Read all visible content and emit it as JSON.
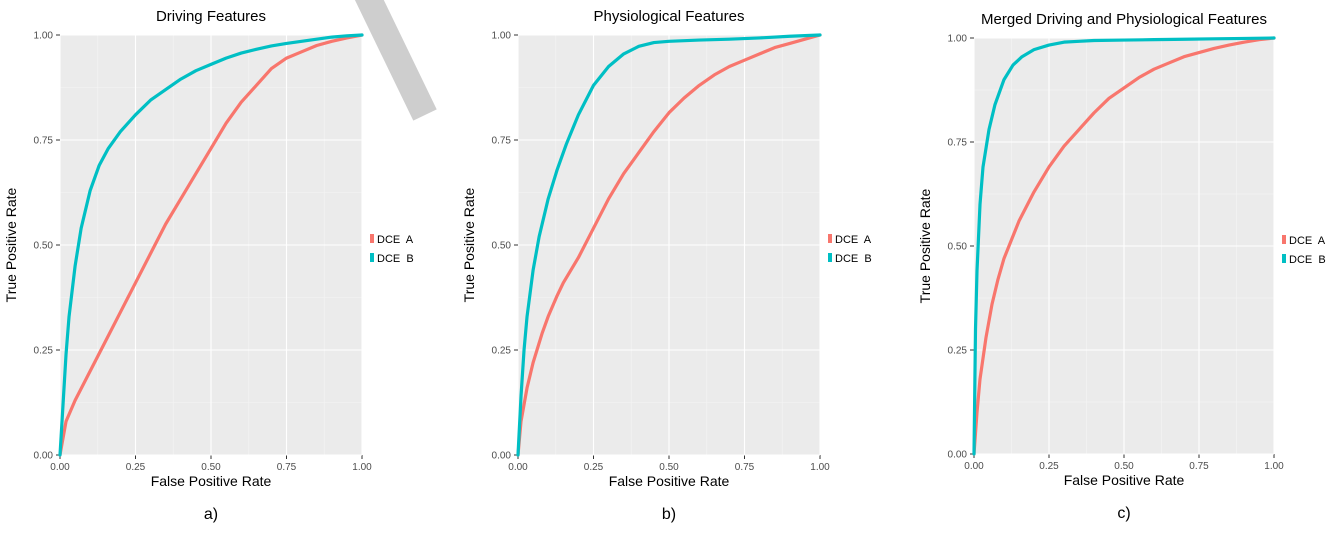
{
  "chart_data": [
    {
      "type": "line",
      "title": "Driving Features",
      "caption": "a)",
      "xlabel": "False Positive Rate",
      "ylabel": "True Positive Rate",
      "xlim": [
        0,
        1
      ],
      "ylim": [
        0,
        1
      ],
      "x_ticks": [
        "0.00",
        "0.25",
        "0.50",
        "0.75",
        "1.00"
      ],
      "y_ticks": [
        "0.00",
        "0.25",
        "0.50",
        "0.75",
        "1.00"
      ],
      "grid": true,
      "legend": "right",
      "series": [
        {
          "name": "DCE  A",
          "color": "#f8766d",
          "x": [
            0,
            0.02,
            0.05,
            0.1,
            0.15,
            0.2,
            0.25,
            0.3,
            0.35,
            0.4,
            0.45,
            0.5,
            0.55,
            0.6,
            0.65,
            0.7,
            0.75,
            0.8,
            0.85,
            0.9,
            0.95,
            1.0
          ],
          "y": [
            0,
            0.08,
            0.13,
            0.2,
            0.27,
            0.34,
            0.41,
            0.48,
            0.55,
            0.61,
            0.67,
            0.73,
            0.79,
            0.84,
            0.88,
            0.92,
            0.945,
            0.96,
            0.975,
            0.985,
            0.993,
            1.0
          ]
        },
        {
          "name": "DCE  B",
          "color": "#00bfc4",
          "x": [
            0,
            0.01,
            0.02,
            0.03,
            0.05,
            0.07,
            0.1,
            0.13,
            0.16,
            0.2,
            0.25,
            0.3,
            0.35,
            0.4,
            0.45,
            0.5,
            0.55,
            0.6,
            0.65,
            0.7,
            0.75,
            0.8,
            0.85,
            0.9,
            0.95,
            1.0
          ],
          "y": [
            0,
            0.12,
            0.24,
            0.33,
            0.45,
            0.54,
            0.63,
            0.69,
            0.73,
            0.77,
            0.81,
            0.845,
            0.87,
            0.895,
            0.915,
            0.93,
            0.945,
            0.957,
            0.966,
            0.974,
            0.98,
            0.985,
            0.99,
            0.995,
            0.998,
            1.0
          ]
        }
      ]
    },
    {
      "type": "line",
      "title": "Physiological Features",
      "caption": "b)",
      "xlabel": "False Positive Rate",
      "ylabel": "True Positive Rate",
      "xlim": [
        0,
        1
      ],
      "ylim": [
        0,
        1
      ],
      "x_ticks": [
        "0.00",
        "0.25",
        "0.50",
        "0.75",
        "1.00"
      ],
      "y_ticks": [
        "0.00",
        "0.25",
        "0.50",
        "0.75",
        "1.00"
      ],
      "grid": true,
      "legend": "right",
      "series": [
        {
          "name": "DCE  A",
          "color": "#f8766d",
          "x": [
            0,
            0.01,
            0.03,
            0.05,
            0.08,
            0.1,
            0.13,
            0.15,
            0.2,
            0.25,
            0.3,
            0.35,
            0.4,
            0.45,
            0.5,
            0.55,
            0.6,
            0.65,
            0.7,
            0.75,
            0.8,
            0.85,
            0.9,
            0.95,
            1.0
          ],
          "y": [
            0,
            0.08,
            0.16,
            0.22,
            0.29,
            0.33,
            0.38,
            0.41,
            0.47,
            0.54,
            0.61,
            0.67,
            0.72,
            0.77,
            0.815,
            0.85,
            0.88,
            0.905,
            0.925,
            0.94,
            0.955,
            0.97,
            0.98,
            0.99,
            1.0
          ]
        },
        {
          "name": "DCE  B",
          "color": "#00bfc4",
          "x": [
            0,
            0.01,
            0.02,
            0.03,
            0.05,
            0.07,
            0.1,
            0.13,
            0.16,
            0.2,
            0.25,
            0.3,
            0.35,
            0.4,
            0.45,
            0.5,
            0.6,
            0.7,
            0.8,
            0.9,
            1.0
          ],
          "y": [
            0,
            0.14,
            0.25,
            0.33,
            0.44,
            0.52,
            0.61,
            0.68,
            0.74,
            0.81,
            0.88,
            0.925,
            0.955,
            0.973,
            0.982,
            0.985,
            0.988,
            0.99,
            0.993,
            0.997,
            1.0
          ]
        }
      ]
    },
    {
      "type": "line",
      "title": "Merged Driving and Physiological Features",
      "caption": "c)",
      "xlabel": "False Positive Rate",
      "ylabel": "True Positive Rate",
      "xlim": [
        0,
        1
      ],
      "ylim": [
        0,
        1
      ],
      "x_ticks": [
        "0.00",
        "0.25",
        "0.50",
        "0.75",
        "1.00"
      ],
      "y_ticks": [
        "0.00",
        "0.25",
        "0.50",
        "0.75",
        "1.00"
      ],
      "grid": true,
      "legend": "right",
      "series": [
        {
          "name": "DCE  A",
          "color": "#f8766d",
          "x": [
            0,
            0.01,
            0.02,
            0.04,
            0.06,
            0.08,
            0.1,
            0.15,
            0.2,
            0.25,
            0.3,
            0.35,
            0.4,
            0.45,
            0.5,
            0.55,
            0.6,
            0.65,
            0.7,
            0.75,
            0.8,
            0.85,
            0.9,
            0.95,
            1.0
          ],
          "y": [
            0,
            0.1,
            0.18,
            0.28,
            0.36,
            0.42,
            0.47,
            0.56,
            0.63,
            0.69,
            0.74,
            0.78,
            0.82,
            0.855,
            0.88,
            0.905,
            0.925,
            0.94,
            0.955,
            0.965,
            0.975,
            0.983,
            0.99,
            0.996,
            1.0
          ]
        },
        {
          "name": "DCE  B",
          "color": "#00bfc4",
          "x": [
            0,
            0.005,
            0.01,
            0.02,
            0.03,
            0.05,
            0.07,
            0.1,
            0.13,
            0.16,
            0.2,
            0.25,
            0.3,
            0.35,
            0.4,
            0.5,
            0.6,
            0.7,
            0.8,
            0.9,
            1.0
          ],
          "y": [
            0,
            0.3,
            0.44,
            0.6,
            0.69,
            0.78,
            0.84,
            0.9,
            0.935,
            0.955,
            0.972,
            0.983,
            0.99,
            0.992,
            0.994,
            0.995,
            0.996,
            0.997,
            0.998,
            0.999,
            1.0
          ]
        }
      ]
    }
  ]
}
